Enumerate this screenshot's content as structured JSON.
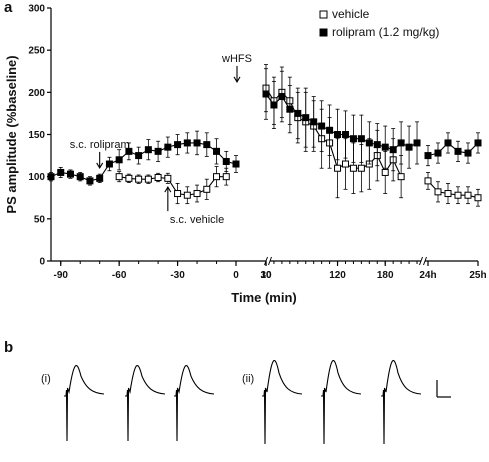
{
  "panel_a_letter": "a",
  "panel_b_letter": "b",
  "chart_data": {
    "type": "line",
    "xlabel": "Time (min)",
    "ylabel": "PS amplitude (%baseline)",
    "ylim": [
      0,
      300
    ],
    "yticks": [
      0,
      50,
      100,
      150,
      200,
      250,
      300
    ],
    "legend_position": "top-right",
    "x_segments": [
      {
        "range": [
          -95,
          0
        ],
        "ticks": [
          -90,
          -60,
          -30,
          0
        ],
        "tick_labels": [
          "-90",
          "-60",
          "-30",
          "0"
        ]
      },
      {
        "range": [
          0,
          10
        ],
        "ticks": [
          10
        ],
        "tick_labels": [
          "10"
        ]
      },
      {
        "range": [
          30,
          225
        ],
        "ticks": [
          30,
          120,
          180
        ],
        "tick_labels": [
          "30",
          "120",
          "180"
        ]
      },
      {
        "range": [
          24,
          25
        ],
        "ticks": [
          24,
          25
        ],
        "tick_labels": [
          "24h",
          "25h"
        ]
      }
    ],
    "annotations": [
      {
        "text": "s.c. rolipram",
        "time": -70,
        "value": 108,
        "arrow": "down"
      },
      {
        "text": "s.c. vehicle",
        "time": -35,
        "value": 90,
        "arrow": "up"
      },
      {
        "text": "wHFS",
        "time": 0,
        "value": 210,
        "arrow": "down"
      }
    ],
    "series": [
      {
        "name": "vehicle",
        "marker": "open-square",
        "color": "#000000",
        "segments": [
          {
            "seg": 1,
            "points": [
              [
                -60,
                100,
                6
              ],
              [
                -55,
                98,
                5
              ],
              [
                -50,
                97,
                5
              ],
              [
                -45,
                97,
                5
              ],
              [
                -40,
                99,
                5
              ],
              [
                -35,
                98,
                6
              ],
              [
                -30,
                80,
                12
              ],
              [
                -25,
                78,
                10
              ],
              [
                -20,
                80,
                10
              ],
              [
                -15,
                85,
                12
              ],
              [
                -10,
                100,
                12
              ],
              [
                -5,
                100,
                10
              ]
            ]
          },
          {
            "seg": 3,
            "points": [
              [
                30,
                205,
                28
              ],
              [
                40,
                190,
                28
              ],
              [
                50,
                200,
                30
              ],
              [
                60,
                190,
                28
              ],
              [
                70,
                170,
                30
              ],
              [
                80,
                165,
                35
              ],
              [
                90,
                160,
                30
              ],
              [
                100,
                145,
                35
              ],
              [
                110,
                140,
                30
              ],
              [
                120,
                110,
                35
              ],
              [
                130,
                115,
                30
              ],
              [
                140,
                110,
                30
              ],
              [
                150,
                110,
                28
              ],
              [
                160,
                115,
                30
              ],
              [
                170,
                125,
                30
              ],
              [
                180,
                105,
                25
              ],
              [
                190,
                120,
                25
              ],
              [
                200,
                100,
                25
              ]
            ]
          },
          {
            "seg": 4,
            "points": [
              [
                24.0,
                95,
                10
              ],
              [
                24.2,
                82,
                12
              ],
              [
                24.4,
                80,
                12
              ],
              [
                24.6,
                78,
                10
              ],
              [
                24.8,
                78,
                10
              ],
              [
                25.0,
                75,
                10
              ]
            ]
          }
        ]
      },
      {
        "name": "rolipram (1.2 mg/kg)",
        "marker": "filled-square",
        "color": "#000000",
        "segments": [
          {
            "seg": 1,
            "points": [
              [
                -95,
                100,
                5
              ],
              [
                -90,
                105,
                6
              ],
              [
                -85,
                103,
                5
              ],
              [
                -80,
                100,
                5
              ],
              [
                -75,
                95,
                5
              ],
              [
                -70,
                98,
                5
              ],
              [
                -65,
                115,
                8
              ],
              [
                -60,
                120,
                12
              ],
              [
                -55,
                130,
                10
              ],
              [
                -50,
                125,
                10
              ],
              [
                -45,
                132,
                12
              ],
              [
                -40,
                130,
                12
              ],
              [
                -35,
                135,
                12
              ],
              [
                -30,
                138,
                12
              ],
              [
                -25,
                140,
                12
              ],
              [
                -20,
                140,
                14
              ],
              [
                -15,
                138,
                14
              ],
              [
                -10,
                130,
                15
              ],
              [
                -5,
                118,
                12
              ],
              [
                0,
                115,
                10
              ]
            ]
          },
          {
            "seg": 3,
            "points": [
              [
                30,
                198,
                30
              ],
              [
                40,
                185,
                28
              ],
              [
                50,
                195,
                30
              ],
              [
                60,
                180,
                28
              ],
              [
                70,
                175,
                30
              ],
              [
                80,
                170,
                35
              ],
              [
                90,
                165,
                30
              ],
              [
                100,
                160,
                30
              ],
              [
                110,
                155,
                30
              ],
              [
                120,
                150,
                30
              ],
              [
                130,
                150,
                28
              ],
              [
                140,
                145,
                28
              ],
              [
                150,
                145,
                28
              ],
              [
                160,
                140,
                25
              ],
              [
                170,
                138,
                25
              ],
              [
                180,
                135,
                25
              ],
              [
                190,
                132,
                25
              ],
              [
                200,
                140,
                25
              ],
              [
                210,
                135,
                25
              ],
              [
                220,
                140,
                25
              ]
            ]
          },
          {
            "seg": 4,
            "points": [
              [
                24.0,
                125,
                12
              ],
              [
                24.2,
                128,
                12
              ],
              [
                24.4,
                140,
                12
              ],
              [
                24.6,
                130,
                12
              ],
              [
                24.8,
                128,
                12
              ],
              [
                25.0,
                140,
                12
              ]
            ]
          }
        ]
      }
    ]
  },
  "panel_b": {
    "group_labels": [
      "(i)",
      "(ii)"
    ]
  }
}
